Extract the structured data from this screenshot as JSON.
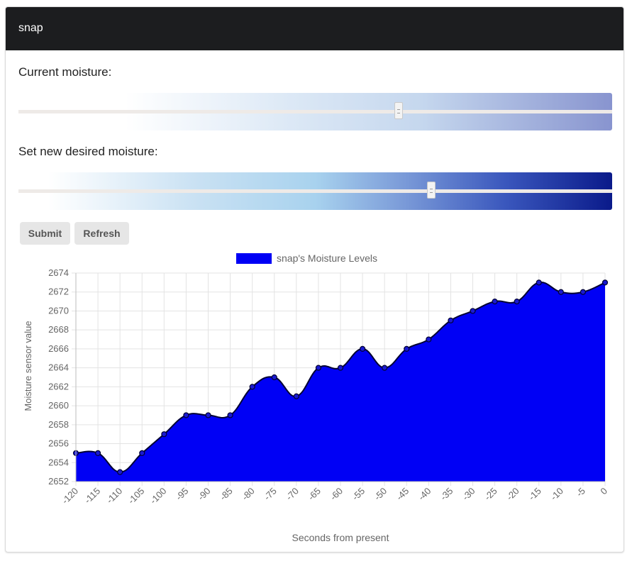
{
  "header": {
    "title": "snap"
  },
  "current_moisture": {
    "label": "Current moisture:",
    "value_fraction": 0.64
  },
  "desired_moisture": {
    "label": "Set new desired moisture:",
    "value_fraction": 0.695
  },
  "buttons": {
    "submit": "Submit",
    "refresh": "Refresh"
  },
  "colors": {
    "series_fill": "#0000f5",
    "series_line": "#000033",
    "current_gradient_end": "#8894cf",
    "desired_gradient_end": "#0a1a8a",
    "header_bg": "#1c1d1f"
  },
  "chart_data": {
    "type": "area",
    "series": [
      {
        "name": "snap's Moisture Levels",
        "x": [
          -120,
          -115,
          -110,
          -105,
          -100,
          -95,
          -90,
          -85,
          -80,
          -75,
          -70,
          -65,
          -60,
          -55,
          -50,
          -45,
          -40,
          -35,
          -30,
          -25,
          -20,
          -15,
          -10,
          -5,
          0
        ],
        "values": [
          2655,
          2655,
          2653,
          2655,
          2657,
          2659,
          2659,
          2659,
          2662,
          2663,
          2661,
          2664,
          2664,
          2666,
          2664,
          2666,
          2667,
          2669,
          2670,
          2671,
          2671,
          2673,
          2672,
          2672,
          2673
        ]
      }
    ],
    "x_ticks": [
      "-120",
      "-115",
      "-110",
      "-105",
      "-100",
      "-95",
      "-90",
      "-85",
      "-80",
      "-75",
      "-70",
      "-65",
      "-60",
      "-55",
      "-50",
      "-45",
      "-40",
      "-35",
      "-30",
      "-25",
      "-20",
      "-15",
      "-10",
      "-5",
      "0"
    ],
    "y_ticks": [
      "2652",
      "2654",
      "2656",
      "2658",
      "2660",
      "2662",
      "2664",
      "2666",
      "2668",
      "2670",
      "2672",
      "2674"
    ],
    "xlabel": "Seconds from present",
    "ylabel": "Moisture sensor value",
    "ylim": [
      2652,
      2674
    ],
    "xlim": [
      -120,
      0
    ],
    "grid": true,
    "legend_position": "top-center"
  }
}
